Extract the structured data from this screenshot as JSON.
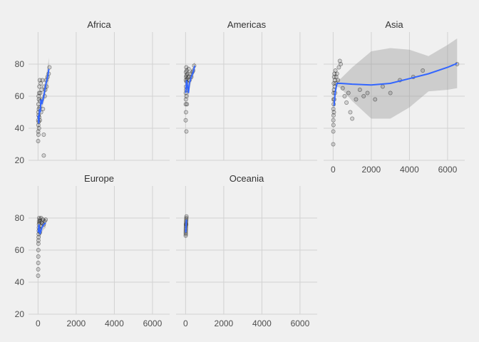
{
  "chart_data": {
    "type": "scatter",
    "layout": "facet_wrap",
    "facets": [
      "Africa",
      "Americas",
      "Asia",
      "Europe",
      "Oceania"
    ],
    "xlim": [
      -500,
      6900
    ],
    "ylim": [
      20,
      100
    ],
    "x_ticks": [
      0,
      2000,
      4000,
      6000
    ],
    "y_ticks": [
      20,
      40,
      60,
      80
    ],
    "x_tick_labels": [
      "0",
      "2000",
      "4000",
      "6000"
    ],
    "y_tick_labels": [
      "20",
      "40",
      "60",
      "80"
    ],
    "grid": true,
    "smooth": {
      "color": "#3366ff",
      "band_color": "#999999"
    },
    "panels": [
      {
        "name": "Africa",
        "points": [
          [
            5,
            32
          ],
          [
            8,
            38
          ],
          [
            10,
            45
          ],
          [
            12,
            50
          ],
          [
            15,
            42
          ],
          [
            18,
            55
          ],
          [
            20,
            36
          ],
          [
            25,
            48
          ],
          [
            30,
            60
          ],
          [
            35,
            44
          ],
          [
            40,
            52
          ],
          [
            45,
            58
          ],
          [
            50,
            40
          ],
          [
            55,
            62
          ],
          [
            60,
            47
          ],
          [
            70,
            66
          ],
          [
            80,
            53
          ],
          [
            90,
            70
          ],
          [
            100,
            45
          ],
          [
            110,
            57
          ],
          [
            120,
            62
          ],
          [
            140,
            68
          ],
          [
            160,
            50
          ],
          [
            180,
            64
          ],
          [
            200,
            58
          ],
          [
            230,
            70
          ],
          [
            260,
            52
          ],
          [
            300,
            36
          ],
          [
            320,
            66
          ],
          [
            350,
            60
          ],
          [
            380,
            64
          ],
          [
            420,
            70
          ],
          [
            450,
            66
          ],
          [
            500,
            72
          ],
          [
            560,
            74
          ],
          [
            600,
            78
          ],
          [
            300,
            23
          ]
        ],
        "curve": [
          [
            10,
            48
          ],
          [
            40,
            43
          ],
          [
            80,
            52
          ],
          [
            120,
            50
          ],
          [
            150,
            58
          ],
          [
            200,
            55
          ],
          [
            300,
            60
          ],
          [
            400,
            67
          ],
          [
            500,
            72
          ],
          [
            570,
            77
          ]
        ],
        "band_hi": [
          [
            10,
            54
          ],
          [
            40,
            48
          ],
          [
            80,
            55
          ],
          [
            120,
            54
          ],
          [
            150,
            61
          ],
          [
            200,
            58
          ],
          [
            300,
            64
          ],
          [
            400,
            72
          ],
          [
            500,
            78
          ],
          [
            570,
            84
          ]
        ],
        "band_lo": [
          [
            10,
            42
          ],
          [
            40,
            38
          ],
          [
            80,
            49
          ],
          [
            120,
            46
          ],
          [
            150,
            55
          ],
          [
            200,
            52
          ],
          [
            300,
            56
          ],
          [
            400,
            62
          ],
          [
            500,
            66
          ],
          [
            570,
            70
          ]
        ]
      },
      {
        "name": "Americas",
        "points": [
          [
            5,
            45
          ],
          [
            8,
            55
          ],
          [
            10,
            62
          ],
          [
            12,
            70
          ],
          [
            15,
            58
          ],
          [
            18,
            75
          ],
          [
            20,
            66
          ],
          [
            25,
            72
          ],
          [
            30,
            64
          ],
          [
            35,
            78
          ],
          [
            40,
            60
          ],
          [
            45,
            73
          ],
          [
            50,
            69
          ],
          [
            60,
            76
          ],
          [
            70,
            55
          ],
          [
            80,
            71
          ],
          [
            90,
            65
          ],
          [
            100,
            74
          ],
          [
            120,
            68
          ],
          [
            140,
            72
          ],
          [
            160,
            77
          ],
          [
            200,
            70
          ],
          [
            250,
            74
          ],
          [
            300,
            72
          ],
          [
            350,
            75
          ],
          [
            400,
            76
          ],
          [
            450,
            79
          ],
          [
            40,
            38
          ],
          [
            20,
            50
          ]
        ],
        "curve": [
          [
            10,
            62
          ],
          [
            50,
            70
          ],
          [
            100,
            66
          ],
          [
            150,
            62
          ],
          [
            200,
            68
          ],
          [
            300,
            72
          ],
          [
            400,
            75
          ],
          [
            480,
            79
          ]
        ],
        "band_hi": [
          [
            10,
            66
          ],
          [
            50,
            73
          ],
          [
            100,
            70
          ],
          [
            150,
            66
          ],
          [
            200,
            72
          ],
          [
            300,
            75
          ],
          [
            400,
            78
          ],
          [
            480,
            82
          ]
        ],
        "band_lo": [
          [
            10,
            58
          ],
          [
            50,
            67
          ],
          [
            100,
            62
          ],
          [
            150,
            58
          ],
          [
            200,
            64
          ],
          [
            300,
            69
          ],
          [
            400,
            72
          ],
          [
            480,
            76
          ]
        ]
      },
      {
        "name": "Asia",
        "points": [
          [
            5,
            30
          ],
          [
            8,
            38
          ],
          [
            10,
            45
          ],
          [
            12,
            52
          ],
          [
            15,
            42
          ],
          [
            18,
            58
          ],
          [
            20,
            48
          ],
          [
            25,
            62
          ],
          [
            30,
            55
          ],
          [
            35,
            68
          ],
          [
            40,
            50
          ],
          [
            45,
            64
          ],
          [
            50,
            72
          ],
          [
            60,
            58
          ],
          [
            70,
            74
          ],
          [
            80,
            66
          ],
          [
            90,
            70
          ],
          [
            100,
            62
          ],
          [
            120,
            76
          ],
          [
            140,
            68
          ],
          [
            160,
            72
          ],
          [
            200,
            74
          ],
          [
            250,
            70
          ],
          [
            300,
            78
          ],
          [
            350,
            82
          ],
          [
            400,
            80
          ],
          [
            500,
            65
          ],
          [
            600,
            60
          ],
          [
            700,
            56
          ],
          [
            800,
            62
          ],
          [
            900,
            50
          ],
          [
            1000,
            46
          ],
          [
            1200,
            58
          ],
          [
            1400,
            64
          ],
          [
            1600,
            60
          ],
          [
            1800,
            62
          ],
          [
            2200,
            58
          ],
          [
            2600,
            66
          ],
          [
            3000,
            62
          ],
          [
            3500,
            70
          ],
          [
            4200,
            72
          ],
          [
            4700,
            76
          ],
          [
            6500,
            80
          ]
        ],
        "curve": [
          [
            50,
            54
          ],
          [
            100,
            62
          ],
          [
            200,
            68
          ],
          [
            400,
            68
          ],
          [
            1000,
            67.5
          ],
          [
            2000,
            67
          ],
          [
            3000,
            68
          ],
          [
            4000,
            71
          ],
          [
            5000,
            74
          ],
          [
            6000,
            78
          ],
          [
            6500,
            80.5
          ]
        ],
        "band_hi": [
          [
            50,
            58
          ],
          [
            100,
            65
          ],
          [
            200,
            70
          ],
          [
            400,
            71
          ],
          [
            1000,
            78
          ],
          [
            2000,
            88
          ],
          [
            3000,
            90
          ],
          [
            4000,
            89
          ],
          [
            5000,
            85
          ],
          [
            6000,
            92
          ],
          [
            6500,
            96
          ]
        ],
        "band_lo": [
          [
            50,
            50
          ],
          [
            100,
            59
          ],
          [
            200,
            66
          ],
          [
            400,
            65
          ],
          [
            1000,
            57
          ],
          [
            2000,
            46
          ],
          [
            3000,
            46
          ],
          [
            4000,
            53
          ],
          [
            5000,
            63
          ],
          [
            6000,
            64
          ],
          [
            6500,
            65
          ]
        ]
      },
      {
        "name": "Europe",
        "points": [
          [
            5,
            44
          ],
          [
            8,
            48
          ],
          [
            10,
            52
          ],
          [
            12,
            56
          ],
          [
            15,
            60
          ],
          [
            18,
            64
          ],
          [
            20,
            66
          ],
          [
            25,
            68
          ],
          [
            30,
            70
          ],
          [
            35,
            72
          ],
          [
            40,
            74
          ],
          [
            45,
            76
          ],
          [
            50,
            78
          ],
          [
            60,
            80
          ],
          [
            70,
            77
          ],
          [
            80,
            73
          ],
          [
            90,
            79
          ],
          [
            100,
            71
          ],
          [
            120,
            78
          ],
          [
            140,
            75
          ],
          [
            160,
            80
          ],
          [
            200,
            77
          ],
          [
            250,
            79
          ],
          [
            300,
            76
          ],
          [
            350,
            78
          ],
          [
            400,
            79
          ]
        ],
        "curve": [
          [
            10,
            71
          ],
          [
            50,
            76
          ],
          [
            100,
            70
          ],
          [
            150,
            72
          ],
          [
            200,
            74
          ],
          [
            300,
            76
          ],
          [
            400,
            77
          ]
        ],
        "band_hi": [
          [
            10,
            74
          ],
          [
            50,
            79
          ],
          [
            100,
            73
          ],
          [
            150,
            75
          ],
          [
            200,
            77
          ],
          [
            300,
            79
          ],
          [
            400,
            80
          ]
        ],
        "band_lo": [
          [
            10,
            68
          ],
          [
            50,
            73
          ],
          [
            100,
            67
          ],
          [
            150,
            69
          ],
          [
            200,
            71
          ],
          [
            300,
            73
          ],
          [
            400,
            74
          ]
        ]
      },
      {
        "name": "Oceania",
        "points": [
          [
            5,
            69
          ],
          [
            8,
            71
          ],
          [
            10,
            72
          ],
          [
            12,
            73
          ],
          [
            15,
            74
          ],
          [
            18,
            75
          ],
          [
            20,
            76
          ],
          [
            25,
            77
          ],
          [
            30,
            78
          ],
          [
            35,
            79
          ],
          [
            40,
            80
          ],
          [
            45,
            81
          ],
          [
            10,
            70
          ],
          [
            30,
            76
          ]
        ],
        "curve": [
          [
            5,
            71
          ],
          [
            15,
            73
          ],
          [
            25,
            75
          ],
          [
            35,
            77
          ],
          [
            45,
            79
          ]
        ],
        "band_hi": [
          [
            5,
            72.5
          ],
          [
            15,
            74.5
          ],
          [
            25,
            76.5
          ],
          [
            35,
            78.5
          ],
          [
            45,
            80.5
          ]
        ],
        "band_lo": [
          [
            5,
            69.5
          ],
          [
            15,
            71.5
          ],
          [
            25,
            73.5
          ],
          [
            35,
            75.5
          ],
          [
            45,
            77.5
          ]
        ]
      }
    ]
  }
}
